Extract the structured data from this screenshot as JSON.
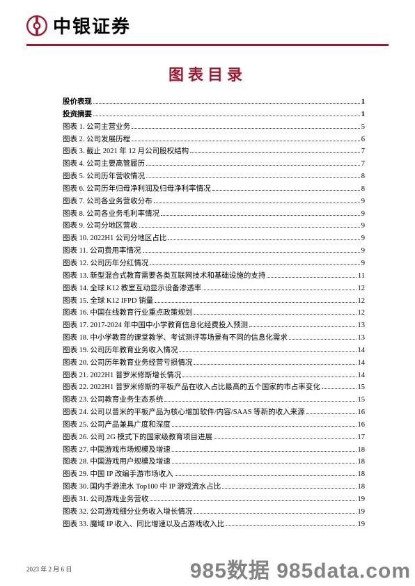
{
  "brand": "中银证券",
  "title": "图表目录",
  "footer_date": "2023 年 2 月 6 日",
  "watermark": "985数据 985data.com",
  "colors": {
    "accent": "#a01830",
    "text": "#000000",
    "background": "#ffffff"
  },
  "toc": [
    {
      "label": "股价表现",
      "page": "1",
      "bold": true
    },
    {
      "label": "投资摘要",
      "page": "1",
      "bold": true
    },
    {
      "label": "图表 1. 公司主营业务",
      "page": "5",
      "bold": false
    },
    {
      "label": "图表 2. 公司发展历程",
      "page": "6",
      "bold": false
    },
    {
      "label": "图表 3. 截止 2021 年 12 月公司股权结构",
      "page": "7",
      "bold": false
    },
    {
      "label": "图表 4. 公司主要高管履历",
      "page": "7",
      "bold": false
    },
    {
      "label": "图表 5. 公司历年营收情况",
      "page": "8",
      "bold": false
    },
    {
      "label": "图表 6. 公司历年归母净利润及归母净利率情况",
      "page": "8",
      "bold": false
    },
    {
      "label": "图表 7. 公司各业务营收分布",
      "page": "9",
      "bold": false
    },
    {
      "label": "图表 8. 公司各业务毛利率情况",
      "page": "9",
      "bold": false
    },
    {
      "label": "图表 9. 公司分地区营收",
      "page": "9",
      "bold": false
    },
    {
      "label": "图表 10. 2022H1 公司分地区占比",
      "page": "9",
      "bold": false
    },
    {
      "label": "图表 11. 公司费用率情况",
      "page": "9",
      "bold": false
    },
    {
      "label": "图表 12. 公司历年分红情况",
      "page": "9",
      "bold": false
    },
    {
      "label": "图表 13. 新型混合式教育需要各类互联网技术和基础设施的支持",
      "page": "11",
      "bold": false
    },
    {
      "label": "图表 14. 全球 K12 教室互动显示设备渗透率",
      "page": "12",
      "bold": false
    },
    {
      "label": "图表 15. 全球 K12 IFPD 销量",
      "page": "12",
      "bold": false
    },
    {
      "label": "图表 16. 中国在线教育行业重点政策规划",
      "page": "12",
      "bold": false
    },
    {
      "label": "图表 17. 2017-2024 年中国中小学教育信息化经费投入预测",
      "page": "13",
      "bold": false
    },
    {
      "label": "图表 18. 中小学教育的课堂教学、考试测评等场景有不同的信息化需求",
      "page": "13",
      "bold": false
    },
    {
      "label": "图表 19. 公司历年教育业务收入情况",
      "page": "14",
      "bold": false
    },
    {
      "label": "图表 20. 公司历年教育业务经营亏损情况",
      "page": "14",
      "bold": false
    },
    {
      "label": "图表 21. 2022H1 普罗米修斯增长情况",
      "page": "14",
      "bold": false
    },
    {
      "label": "图表 22. 2022H1 普罗米修斯的平板产品在收入占比最高的五个国家的市占率变化",
      "page": "15",
      "bold": false
    },
    {
      "label": "图表 23. 公司教育业务生态系统",
      "page": "15",
      "bold": false
    },
    {
      "label": "图表 24. 公司以普米的平板产品为核心增加软件/内容/SAAS 等新的收入来源",
      "page": "16",
      "bold": false
    },
    {
      "label": "图表 25. 公司产品兼具广度和深度",
      "page": "16",
      "bold": false
    },
    {
      "label": "图表 26. 公司 2G 模式下的国家级教育项目进展",
      "page": "17",
      "bold": false
    },
    {
      "label": "图表 27. 中国游戏市场规模及增速",
      "page": "18",
      "bold": false
    },
    {
      "label": "图表 28. 中国游戏用户规模及增速",
      "page": "18",
      "bold": false
    },
    {
      "label": "图表 29. 中国 IP 改编手游市场收入",
      "page": "18",
      "bold": false
    },
    {
      "label": "图表 30. 国内手游流水 Top100 中 IP 游戏流水占比",
      "page": "18",
      "bold": false
    },
    {
      "label": "图表 31. 公司游戏业务营收",
      "page": "19",
      "bold": false
    },
    {
      "label": "图表 32. 公司游戏细分业务收入增长情况",
      "page": "19",
      "bold": false
    },
    {
      "label": "图表 33. 魔域 IP 收入、同比增速以及占游戏收入比",
      "page": "19",
      "bold": false
    }
  ]
}
